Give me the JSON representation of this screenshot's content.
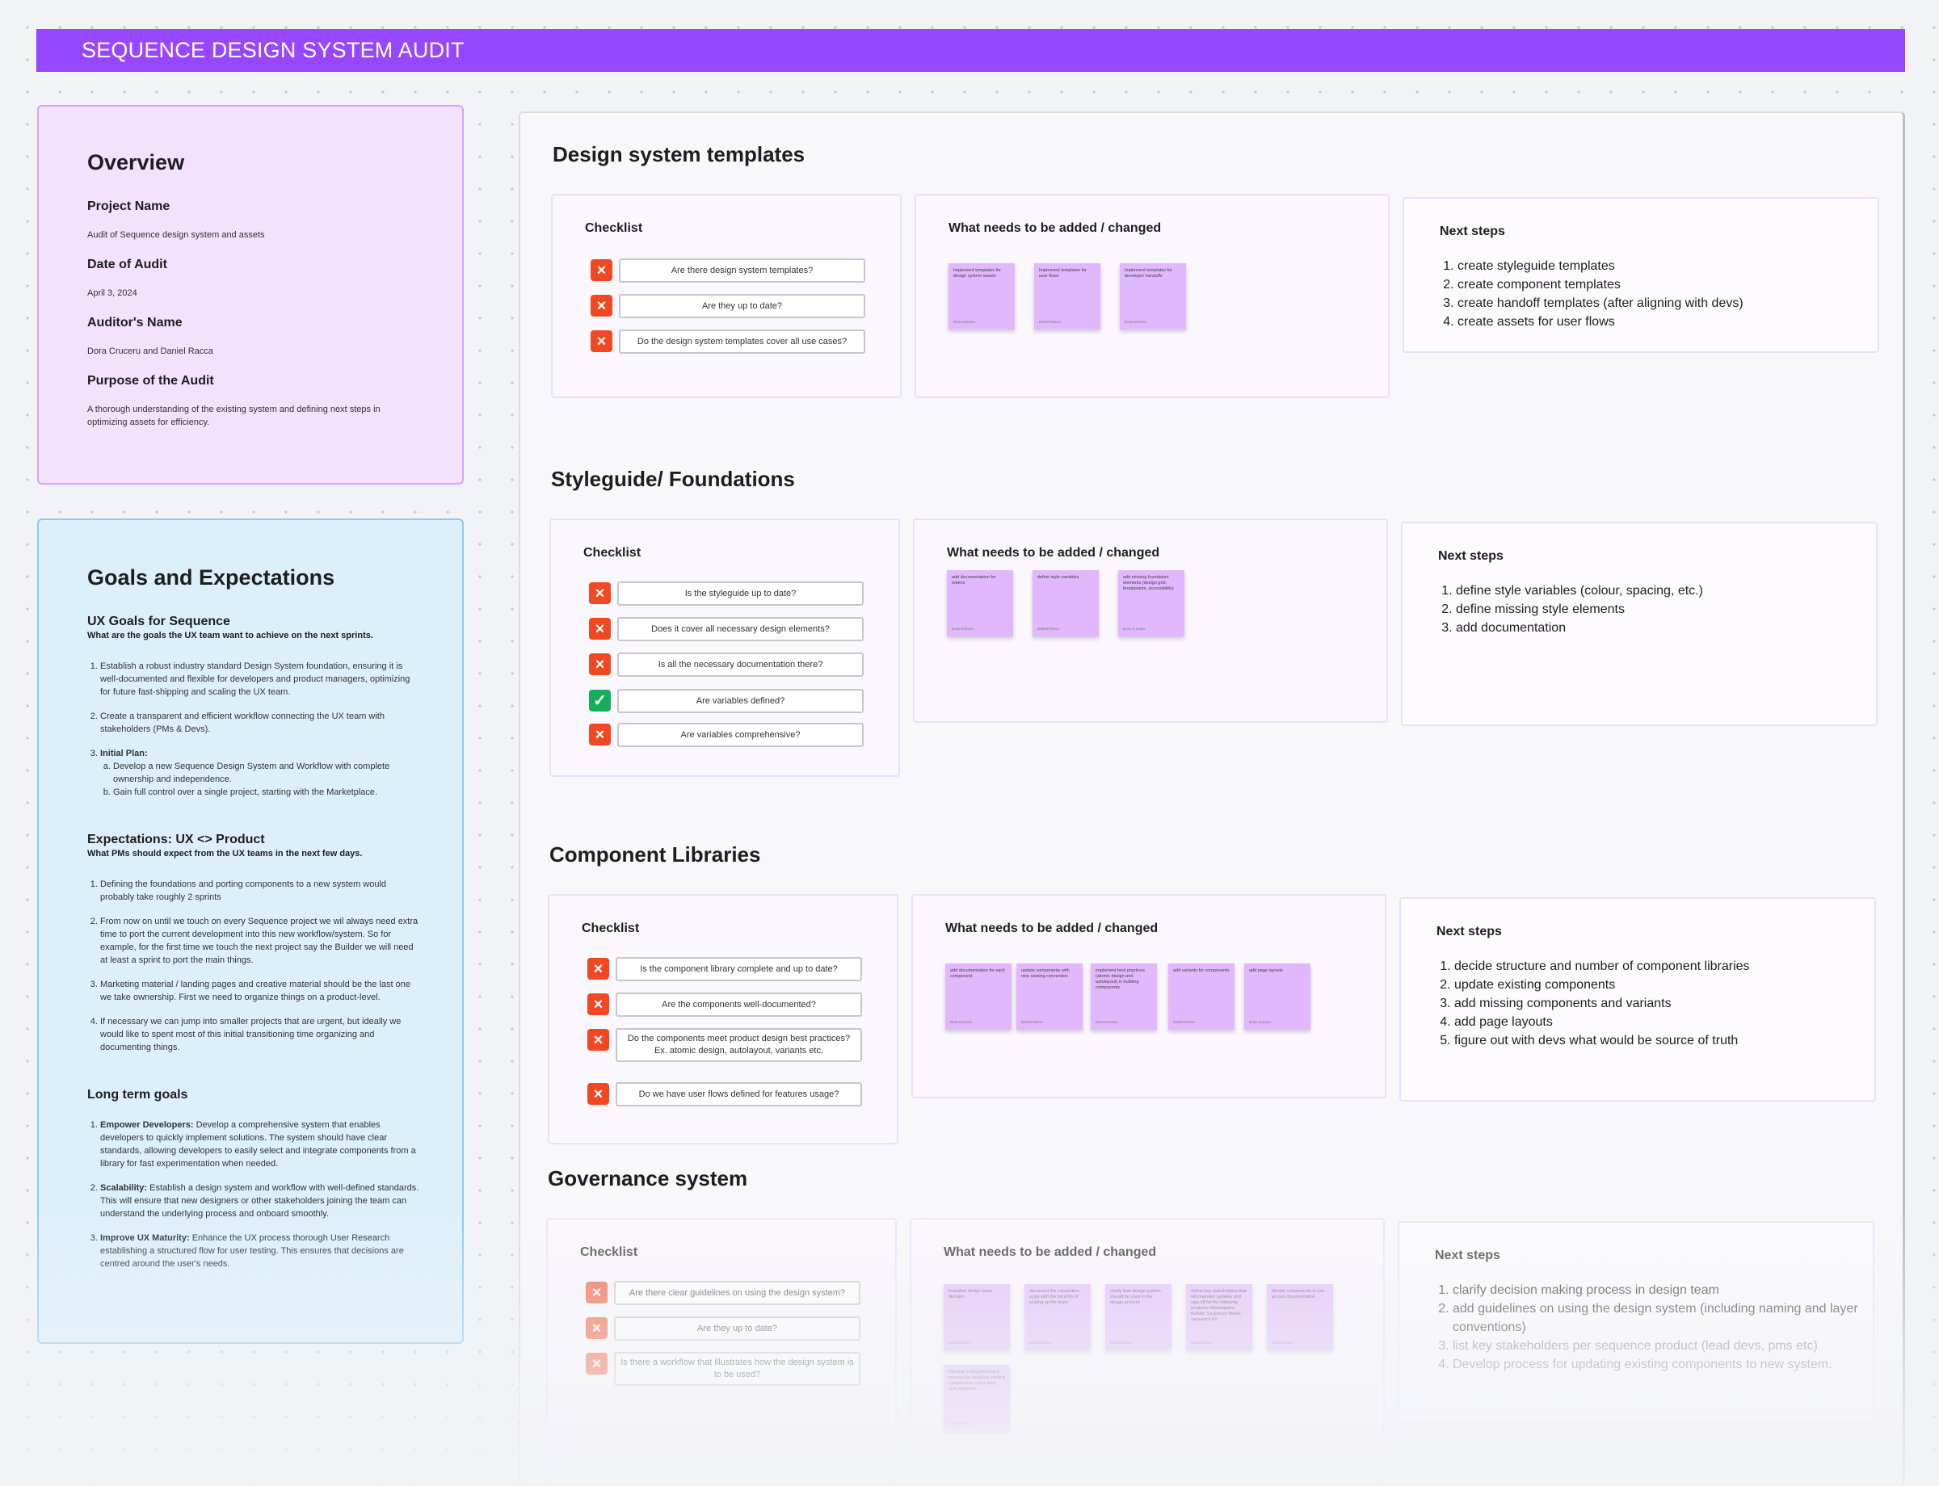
{
  "banner": {
    "title": "SEQUENCE DESIGN SYSTEM AUDIT"
  },
  "overview": {
    "title": "Overview",
    "fields": [
      {
        "label": "Project Name",
        "value": "Audit of Sequence design system and assets"
      },
      {
        "label": "Date of Audit",
        "value": "April 3, 2024"
      },
      {
        "label": "Auditor's Name",
        "value": "Dora Cruceru and Daniel Racca"
      },
      {
        "label": "Purpose of the Audit",
        "value": "A thorough understanding of the existing system and defining next steps in optimizing assets for efficiency."
      }
    ]
  },
  "goals": {
    "title": "Goals and Expectations",
    "ux": {
      "heading": "UX Goals for Sequence",
      "sub": "What are the goals the UX team want to achieve on the next sprints.",
      "items": [
        "Establish a robust industry standard Design System foundation, ensuring it is well-documented and flexible for developers and product managers, optimizing for future fast-shipping and scaling the UX team.",
        "Create a transparent and efficient workflow connecting the UX team with stakeholders (PMs & Devs).",
        "Initial Plan:"
      ],
      "plan": [
        "Develop a new Sequence Design System and Workflow with complete ownership and independence.",
        "Gain full control over a single project, starting with the Marketplace."
      ]
    },
    "expectations": {
      "heading": "Expectations: UX <> Product",
      "sub": "What PMs should expect from the UX teams in the next few days.",
      "items": [
        "Defining the foundations and porting components to a new system would probably take roughly 2 sprints",
        "From now on until we touch on every Sequence project we wil always need extra time to port the current development into this new workflow/system. So for example, for the first time we touch the next project say the Builder we will need at least a sprint to port the main things.",
        "Marketing material / landing pages and creative material should be the last one we take ownership. First we need to organize things on a product-level.",
        "If necessary we can jump into smaller projects that are urgent, but ideally we would like to spent most of this initial transitioning time organizing and documenting things."
      ]
    },
    "longterm": {
      "heading": "Long term goals",
      "items": [
        {
          "lead": "Empower Developers:",
          "text": "Develop a comprehensive system that enables developers to quickly implement solutions. The system should have clear standards, allowing developers to easily select and integrate components from a library for fast experimentation when needed."
        },
        {
          "lead": "Scalability:",
          "text": "Establish a design system and workflow with well-defined standards. This will ensure that new designers or other stakeholders joining the team can understand the underlying process and onboard smoothly."
        },
        {
          "lead": "Improve UX Maturity:",
          "text": "Enhance the UX process thorough User Research establishing a structured flow for user testing. This ensures that decisions are centred around the user's needs."
        }
      ]
    }
  },
  "sections": [
    {
      "title": "Design system templates",
      "checklist_title": "Checklist",
      "checks": [
        {
          "label": "Are there design system templates?",
          "status": "no"
        },
        {
          "label": "Are they up to date?",
          "status": "no"
        },
        {
          "label": "Do the design system templates cover all use cases?",
          "status": "no"
        }
      ],
      "changes_title": "What needs to be added / changed",
      "stickies": [
        {
          "text": "Implement templates for design system assets",
          "by": "Dora Cruceru"
        },
        {
          "text": "Implement templates for user flows",
          "by": "Daniel Racca"
        },
        {
          "text": "Implement templates for developer handoffs",
          "by": "Dora Cruceru"
        }
      ],
      "next_title": "Next steps",
      "steps": [
        "create styleguide templates",
        "create component templates",
        "create handoff templates (after aligning with devs)",
        "create assets for user flows"
      ]
    },
    {
      "title": "Styleguide/ Foundations",
      "checklist_title": "Checklist",
      "checks": [
        {
          "label": "Is the styleguide up to date?",
          "status": "no"
        },
        {
          "label": "Does it cover all necessary design elements?",
          "status": "no"
        },
        {
          "label": "Is all the necessary documentation there?",
          "status": "no"
        },
        {
          "label": "Are variables defined?",
          "status": "yes"
        },
        {
          "label": "Are variables comprehensive?",
          "status": "no"
        }
      ],
      "changes_title": "What needs to be added / changed",
      "stickies": [
        {
          "text": "add documentation for tokens",
          "by": "Dora Cruceru"
        },
        {
          "text": "define style variables",
          "by": "Daniel Racca"
        },
        {
          "text": "add missing foundation elements (design grid, breakpoints, accessibility)",
          "by": "Dora Cruceru"
        }
      ],
      "next_title": "Next steps",
      "steps": [
        "define style variables (colour, spacing, etc.)",
        "define missing style elements",
        "add documentation"
      ]
    },
    {
      "title": "Component Libraries",
      "checklist_title": "Checklist",
      "checks": [
        {
          "label": "Is the component library complete and up to date?",
          "status": "no"
        },
        {
          "label": "Are the components well-documented?",
          "status": "no"
        },
        {
          "label": "Do the components meet product design best practices? Ex. atomic design, autolayout, variants etc.",
          "status": "no"
        },
        {
          "label": "Do we have user flows defined for features usage?",
          "status": "no"
        }
      ],
      "changes_title": "What needs to be added / changed",
      "stickies": [
        {
          "text": "add documentation for each component",
          "by": "Dora Cruceru"
        },
        {
          "text": "update components with new naming convention",
          "by": "Daniel Racca"
        },
        {
          "text": "implement best practices (atomic design and autolayout) in building components",
          "by": "Dora Cruceru"
        },
        {
          "text": "add variants for components",
          "by": "Daniel Racca"
        },
        {
          "text": "add page layouts",
          "by": "Dora Cruceru"
        }
      ],
      "next_title": "Next steps",
      "steps": [
        "decide structure and number of component libraries",
        "update existing components",
        "add missing components and variants",
        "add page layouts",
        "figure out with devs what would be source of truth"
      ]
    },
    {
      "title": "Governance system",
      "checklist_title": "Checklist",
      "checks": [
        {
          "label": "Are there clear guidelines on using the design system?",
          "status": "no"
        },
        {
          "label": "Are they up to date?",
          "status": "no"
        },
        {
          "label": "Is there a workflow that illustrates how the design system is to be used?",
          "status": "no"
        }
      ],
      "changes_title": "What needs to be added / changed",
      "stickies": [
        {
          "text": "formalize design team decision",
          "by": "Dora Cruceru"
        },
        {
          "text": "document the convention, scale with the benefits of scaling up the team",
          "by": "Daniel Racca"
        },
        {
          "text": "clarify how design system should be used in the design process",
          "by": "Dora Cruceru"
        },
        {
          "text": "define key stakeholders that will maintain updates and sign off for the following products: Marketplace, Builder, Sequence Wallet, Sequence Kit",
          "by": "Daniel Racca"
        },
        {
          "text": "identify components in use across documentation",
          "by": "Dora Cruceru"
        },
        {
          "text": "Develop a straightforward process for updating existing components, integrating new additions",
          "by": "Daniel Racca"
        }
      ],
      "next_title": "Next steps",
      "steps": [
        "clarify decision making process in design team",
        "add guidelines on using the design system (including naming and layer conventions)",
        "list key stakeholders per sequence product (lead devs, pms etc)",
        "Develop process for updating existing components to new system."
      ]
    }
  ],
  "icons": {
    "no": "×",
    "yes": "✓"
  },
  "colors": {
    "banner": "#9747ff",
    "no": "#f24822",
    "yes": "#14ae5c",
    "sticky": "#e1b7fd",
    "overview_bg": "#f2e2fe",
    "goals_bg": "#dcf0fc"
  }
}
